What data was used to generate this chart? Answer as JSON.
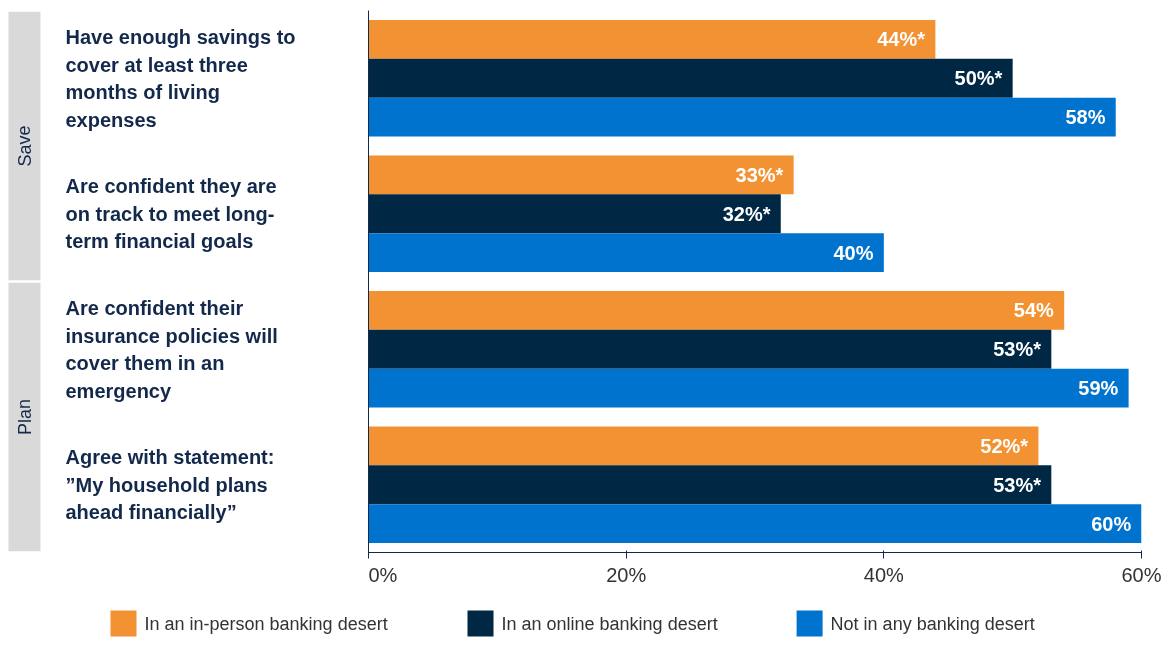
{
  "chart_data": {
    "type": "bar",
    "orientation": "horizontal",
    "categories": [
      "Have enough savings to cover at least three months of living expenses",
      "Are confident they are on track to meet long-term financial goals",
      "Are confident their insurance policies will cover them in an emergency",
      "Agree with statement: ”My household plans ahead financially”"
    ],
    "series": [
      {
        "name": "In an in-person banking desert",
        "color": "#f39232",
        "values": [
          44,
          33,
          54,
          52
        ],
        "value_labels": [
          "44%*",
          "33%*",
          "54%",
          "52%*"
        ]
      },
      {
        "name": "In an online banking desert",
        "color": "#002744",
        "values": [
          50,
          32,
          53,
          53
        ],
        "value_labels": [
          "50%*",
          "32%*",
          "53%*",
          "53%*"
        ]
      },
      {
        "name": "Not in any banking desert",
        "color": "#0073cf",
        "values": [
          58,
          40,
          59,
          60
        ],
        "value_labels": [
          "58%",
          "40%",
          "59%",
          "60%"
        ]
      }
    ],
    "annotations": [
      "Save",
      "Plan"
    ],
    "xlim": [
      0,
      60
    ],
    "xticks": [
      {
        "value": 0,
        "label": "0%"
      },
      {
        "value": 20,
        "label": "20%"
      },
      {
        "value": 40,
        "label": "40%"
      },
      {
        "value": 60,
        "label": "60%"
      }
    ],
    "grid": false,
    "legend": "bottom"
  }
}
